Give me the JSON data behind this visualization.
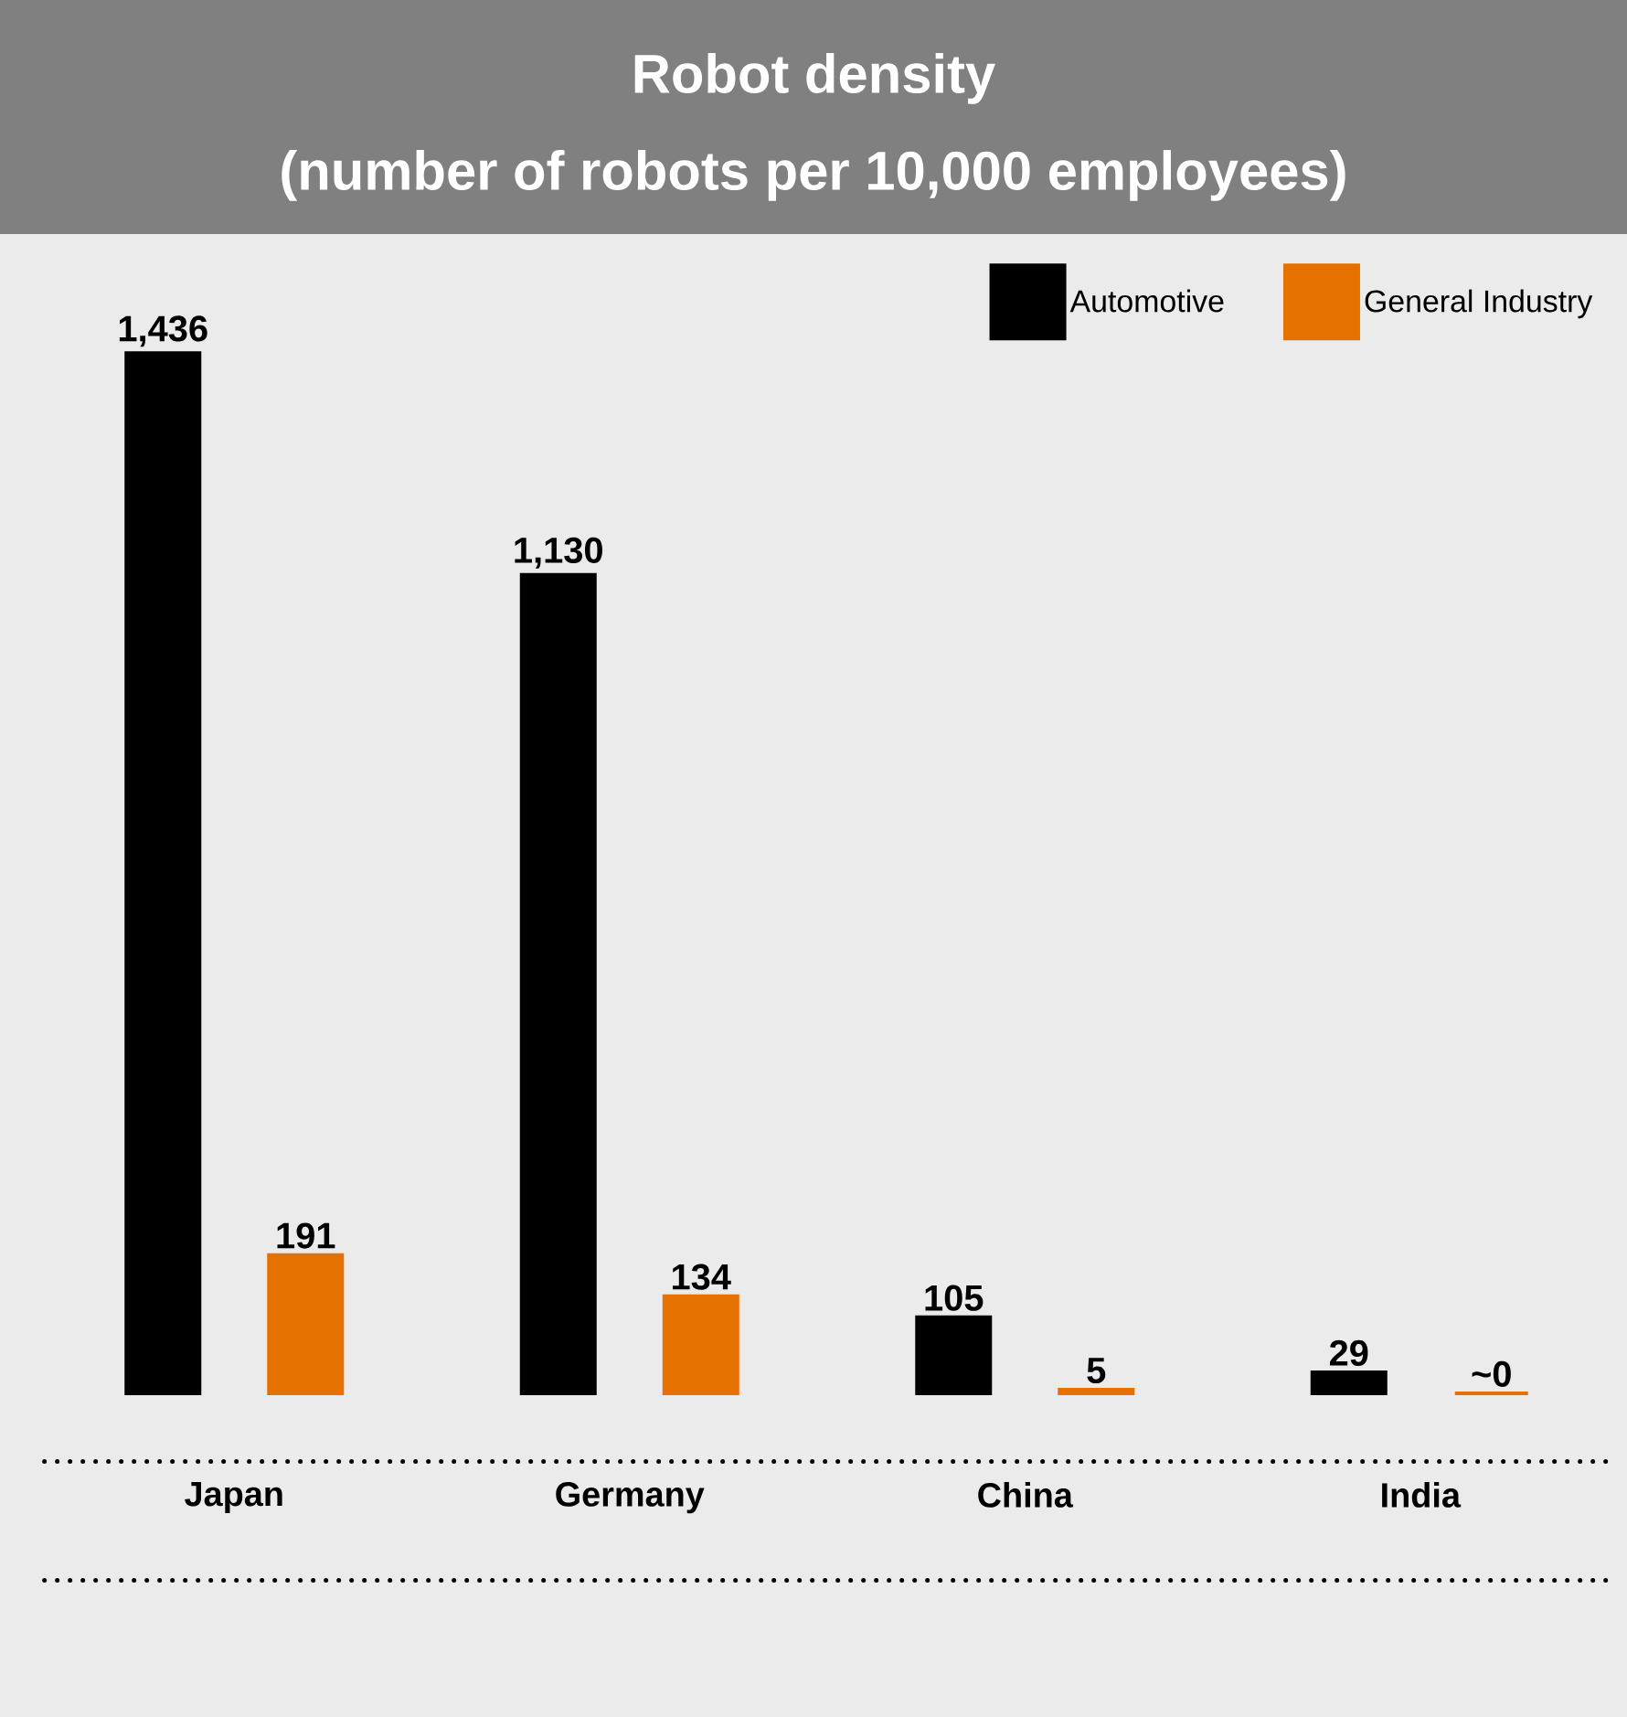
{
  "chart_data": {
    "type": "bar",
    "title": "Robot density",
    "subtitle": "(number of robots per 10,000 employees)",
    "categories": [
      "Japan",
      "Germany",
      "China",
      "India"
    ],
    "series": [
      {
        "name": "Automotive",
        "color": "#000000",
        "values": [
          1436,
          1130,
          105,
          29
        ],
        "value_labels": [
          "1,436",
          "1,130",
          "105",
          "29"
        ]
      },
      {
        "name": "General Industry",
        "color": "#e57200",
        "values": [
          191,
          134,
          5,
          0
        ],
        "value_labels": [
          "191",
          "134",
          "5",
          "~0"
        ]
      }
    ],
    "legend": "top right"
  }
}
